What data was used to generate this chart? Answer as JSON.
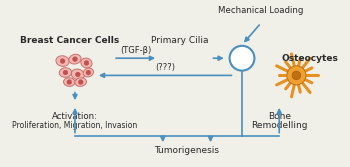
{
  "bg_color": "#f0efe8",
  "arrow_color": "#4a8fbd",
  "arrow_lw": 1.2,
  "text_color": "#2a2a2a",
  "circle_color": "#ffffff",
  "circle_edge": "#4a8fbd",
  "labels": {
    "breast_cancer": "Breast Cancer Cells",
    "primary_cilia": "Primary Cilia",
    "osteocytes": "Osteocytes",
    "mechanical_loading": "Mechanical Loading",
    "activation_line1": "Activation:",
    "activation_line2": "Proliferation, Migration, Invasion",
    "tumorigenesis": "Tumorigenesis",
    "bone_line1": "Bone",
    "bone_line2": "Remodelling",
    "tgf_beta": "(TGF-β)",
    "question": "(???)"
  },
  "cell_body_color": "#f2b8b0",
  "cell_edge_color": "#c87070",
  "cell_nucleus_color": "#c05050",
  "ost_body_color": "#f0a030",
  "ost_spike_color": "#e89020",
  "ost_dark_color": "#c07010"
}
